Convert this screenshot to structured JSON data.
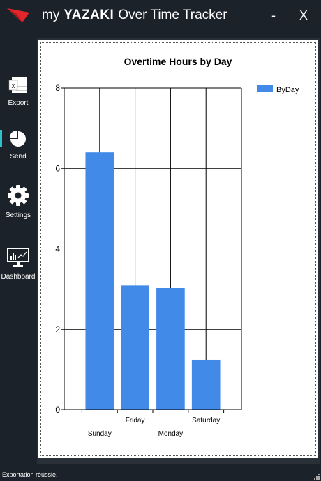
{
  "app": {
    "title_prefix": "my",
    "brand": "YAZAKI",
    "title_suffix": "Over Time Tracker",
    "minimize_label": "-",
    "close_label": "X"
  },
  "sidebar": {
    "items": [
      {
        "label": "Export",
        "icon": "excel-icon"
      },
      {
        "label": "Send",
        "icon": "pie-chart-icon"
      },
      {
        "label": "Settings",
        "icon": "gear-icon"
      },
      {
        "label": "Dashboard",
        "icon": "monitor-chart-icon"
      }
    ],
    "active_index": 1,
    "accent_color": "#2fc1c9"
  },
  "status": {
    "text": "Exportation réussie."
  },
  "colors": {
    "background": "#1b2229",
    "bar": "#418ae8",
    "logo_red": "#e3262b"
  },
  "chart_data": {
    "type": "bar",
    "title": "Overtime Hours by Day",
    "categories": [
      "Sunday",
      "Friday",
      "Monday",
      "Saturday"
    ],
    "series": [
      {
        "name": "ByDay",
        "values": [
          6.4,
          3.1,
          3.03,
          1.25
        ]
      }
    ],
    "ylim": [
      0,
      8
    ],
    "yticks": [
      "0",
      "2",
      "4",
      "6",
      "8"
    ],
    "grid": true,
    "legend": "top-right",
    "xlabel": "",
    "ylabel": ""
  }
}
